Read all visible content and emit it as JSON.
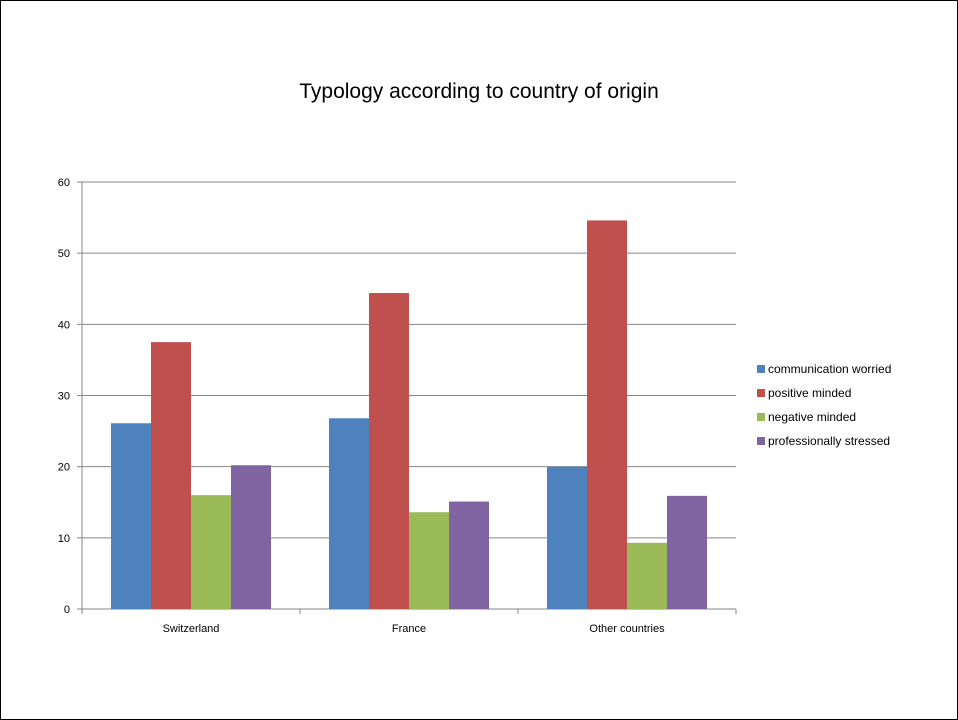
{
  "chart_data": {
    "type": "bar",
    "title": "Typology according to country of origin",
    "xlabel": "",
    "ylabel": "",
    "categories": [
      "Switzerland",
      "France",
      "Other countries"
    ],
    "series": [
      {
        "name": "communication worried",
        "values": [
          26.1,
          26.8,
          20.0
        ],
        "color": "#4F81BD"
      },
      {
        "name": "positive minded",
        "values": [
          37.5,
          44.4,
          54.6
        ],
        "color": "#C0504D"
      },
      {
        "name": "negative minded",
        "values": [
          16.0,
          13.6,
          9.3
        ],
        "color": "#9BBB59"
      },
      {
        "name": "professionally stressed",
        "values": [
          20.2,
          15.1,
          15.9
        ],
        "color": "#8064A2"
      }
    ],
    "ylim": [
      0,
      60
    ],
    "yticks": [
      0,
      10,
      20,
      30,
      40,
      50,
      60
    ],
    "grid": true,
    "legend_position": "right"
  }
}
